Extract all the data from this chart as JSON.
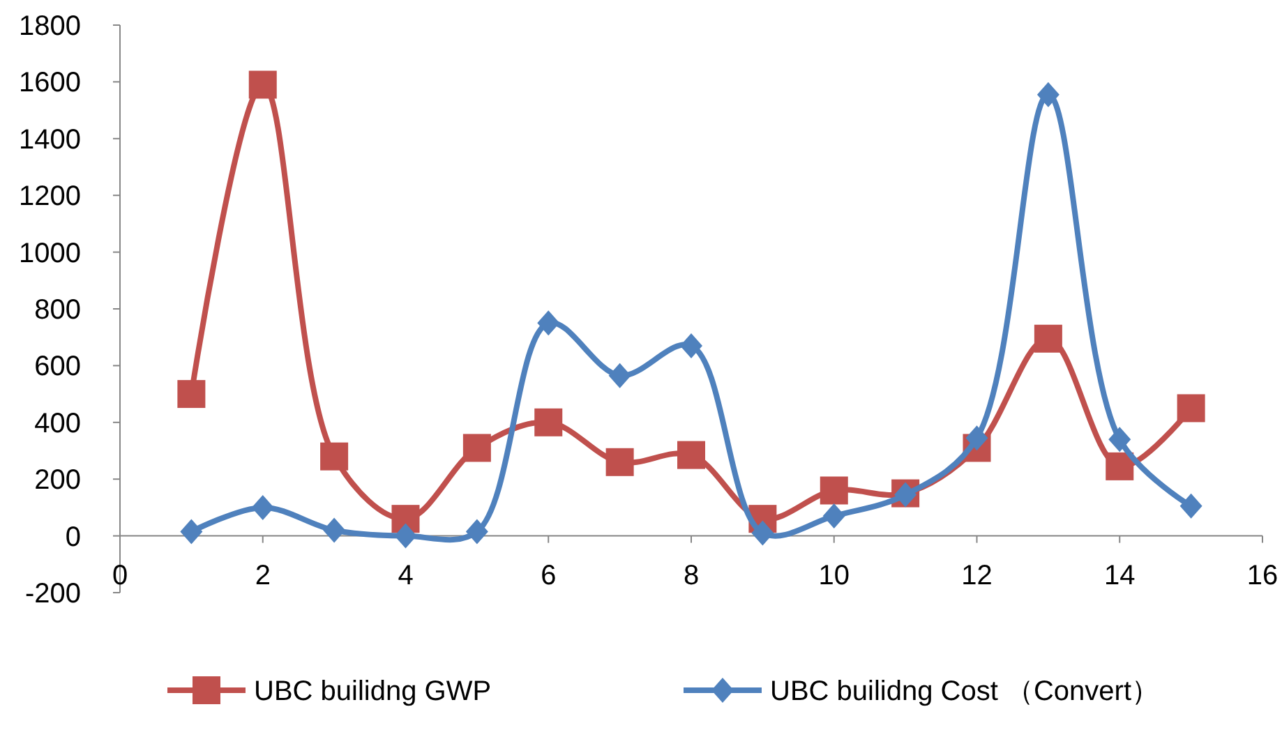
{
  "chart_data": {
    "type": "line",
    "x": [
      1,
      2,
      3,
      4,
      5,
      6,
      7,
      8,
      9,
      10,
      11,
      12,
      13,
      14,
      15
    ],
    "series": [
      {
        "name": "UBC builidng GWP",
        "color": "#c0504d",
        "marker": "square",
        "values": [
          500,
          1590,
          280,
          60,
          310,
          400,
          260,
          285,
          60,
          160,
          150,
          310,
          695,
          245,
          450
        ]
      },
      {
        "name": "UBC builidng Cost （Convert）",
        "color": "#4f81bd",
        "marker": "diamond",
        "values": [
          15,
          100,
          20,
          0,
          15,
          750,
          565,
          670,
          10,
          70,
          145,
          345,
          1555,
          340,
          105
        ]
      }
    ],
    "xlim": [
      0,
      16
    ],
    "xticks": [
      0,
      2,
      4,
      6,
      8,
      10,
      12,
      14,
      16
    ],
    "ylim": [
      -200,
      1800
    ],
    "yticks": [
      -200,
      0,
      200,
      400,
      600,
      800,
      1000,
      1200,
      1400,
      1600,
      1800
    ],
    "grid": false,
    "legend": "bottom",
    "line_style": "solid"
  }
}
